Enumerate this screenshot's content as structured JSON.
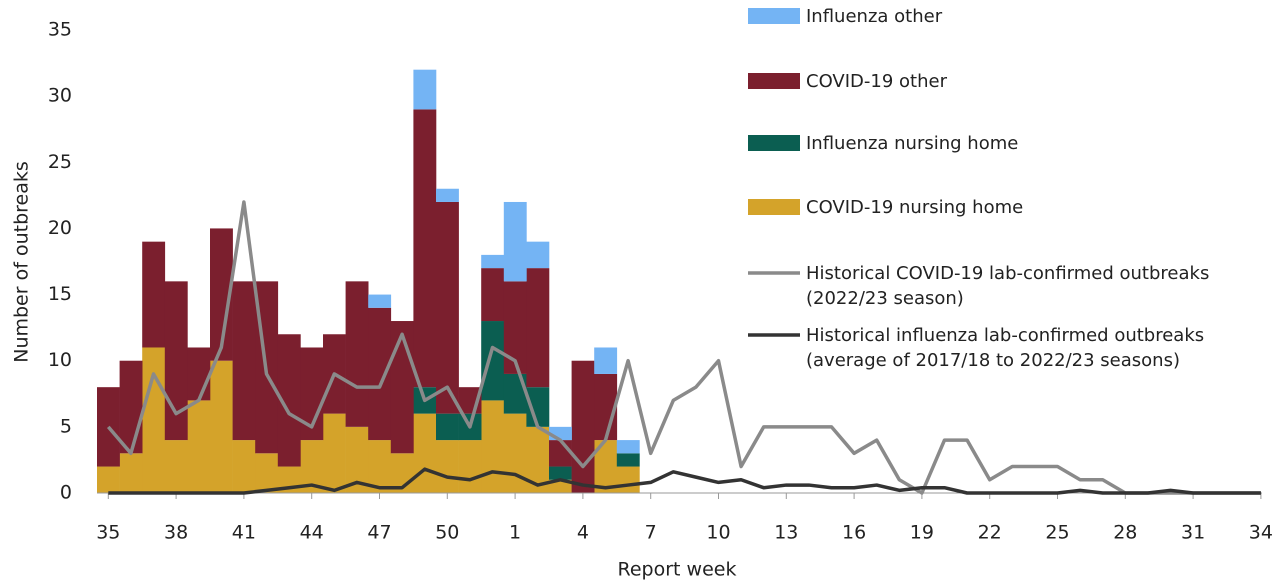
{
  "chart_data": {
    "type": "bar",
    "y_axis_label": "Number of outbreaks",
    "x_axis_label": "Report week",
    "categories": [
      "35",
      null,
      null,
      "38",
      null,
      null,
      "41",
      null,
      null,
      "44",
      null,
      null,
      "47",
      null,
      null,
      "50",
      null,
      null,
      "1",
      null,
      null,
      "4",
      null,
      null,
      "7",
      null,
      null,
      "10",
      null,
      null,
      "13",
      null,
      null,
      "16",
      null,
      null,
      "19",
      null,
      null,
      "22",
      null,
      null,
      "25",
      null,
      null,
      "28",
      null,
      null,
      "31",
      null,
      null,
      "34"
    ],
    "ylim": [
      0,
      35
    ],
    "yticks": [
      0,
      5,
      10,
      15,
      20,
      25,
      30,
      35
    ],
    "grid": false,
    "series": [
      {
        "name": "COVID-19 nursing home",
        "type": "bar",
        "color": "#d4a32a",
        "values": [
          2,
          3,
          11,
          4,
          7,
          10,
          4,
          3,
          2,
          4,
          6,
          5,
          4,
          3,
          6,
          4,
          4,
          7,
          6,
          5,
          1,
          0,
          4,
          2,
          null,
          null,
          null,
          null,
          null,
          null,
          null,
          null,
          null,
          null,
          null,
          null,
          null,
          null,
          null,
          null,
          null,
          null,
          null,
          null,
          null,
          null,
          null,
          null,
          null,
          null,
          null,
          null
        ]
      },
      {
        "name": "Influenza nursing home",
        "type": "bar",
        "color": "#0b5e51",
        "values": [
          0,
          0,
          0,
          0,
          0,
          0,
          0,
          0,
          0,
          0,
          0,
          0,
          0,
          0,
          2,
          2,
          2,
          6,
          3,
          3,
          1,
          0,
          0,
          1,
          null,
          null,
          null,
          null,
          null,
          null,
          null,
          null,
          null,
          null,
          null,
          null,
          null,
          null,
          null,
          null,
          null,
          null,
          null,
          null,
          null,
          null,
          null,
          null,
          null,
          null,
          null,
          null
        ]
      },
      {
        "name": "COVID-19 other",
        "type": "bar",
        "color": "#7b1f2e",
        "values": [
          6,
          7,
          8,
          12,
          4,
          10,
          12,
          13,
          10,
          7,
          6,
          11,
          10,
          10,
          21,
          16,
          2,
          4,
          7,
          9,
          2,
          10,
          5,
          0,
          null,
          null,
          null,
          null,
          null,
          null,
          null,
          null,
          null,
          null,
          null,
          null,
          null,
          null,
          null,
          null,
          null,
          null,
          null,
          null,
          null,
          null,
          null,
          null,
          null,
          null,
          null,
          null
        ]
      },
      {
        "name": "Influenza other",
        "type": "bar",
        "color": "#74b4f4",
        "values": [
          0,
          0,
          0,
          0,
          0,
          0,
          0,
          0,
          0,
          0,
          0,
          0,
          1,
          0,
          3,
          1,
          0,
          1,
          6,
          2,
          1,
          0,
          2,
          1,
          null,
          null,
          null,
          null,
          null,
          null,
          null,
          null,
          null,
          null,
          null,
          null,
          null,
          null,
          null,
          null,
          null,
          null,
          null,
          null,
          null,
          null,
          null,
          null,
          null,
          null,
          null,
          null
        ]
      },
      {
        "name": "Historical COVID-19 lab-confirmed outbreaks (2022/23 season)",
        "type": "line",
        "color": "#8a8a8a",
        "values": [
          5,
          3,
          9,
          6,
          7,
          11,
          22,
          9,
          6,
          5,
          9,
          8,
          8,
          12,
          7,
          8,
          5,
          11,
          10,
          5,
          4,
          2,
          4,
          10,
          3,
          7,
          8,
          10,
          2,
          5,
          5,
          5,
          5,
          3,
          4,
          1,
          0,
          4,
          4,
          1,
          2,
          2,
          2,
          1,
          1,
          0,
          0,
          0,
          0,
          0,
          0,
          0
        ]
      },
      {
        "name": "Historical influenza lab-confirmed outbreaks (average of 2017/18 to 2022/23 seasons)",
        "type": "line",
        "color": "#333333",
        "values": [
          0,
          0,
          0,
          0,
          0,
          0,
          0,
          0.2,
          0.4,
          0.6,
          0.2,
          0.8,
          0.4,
          0.4,
          1.8,
          1.2,
          1.0,
          1.6,
          1.4,
          0.6,
          1.0,
          0.6,
          0.4,
          0.6,
          0.8,
          1.6,
          1.2,
          0.8,
          1.0,
          0.4,
          0.6,
          0.6,
          0.4,
          0.4,
          0.6,
          0.2,
          0.4,
          0.4,
          0,
          0,
          0,
          0,
          0,
          0.2,
          0,
          0,
          0,
          0.2,
          0,
          0,
          0,
          0
        ]
      }
    ]
  }
}
